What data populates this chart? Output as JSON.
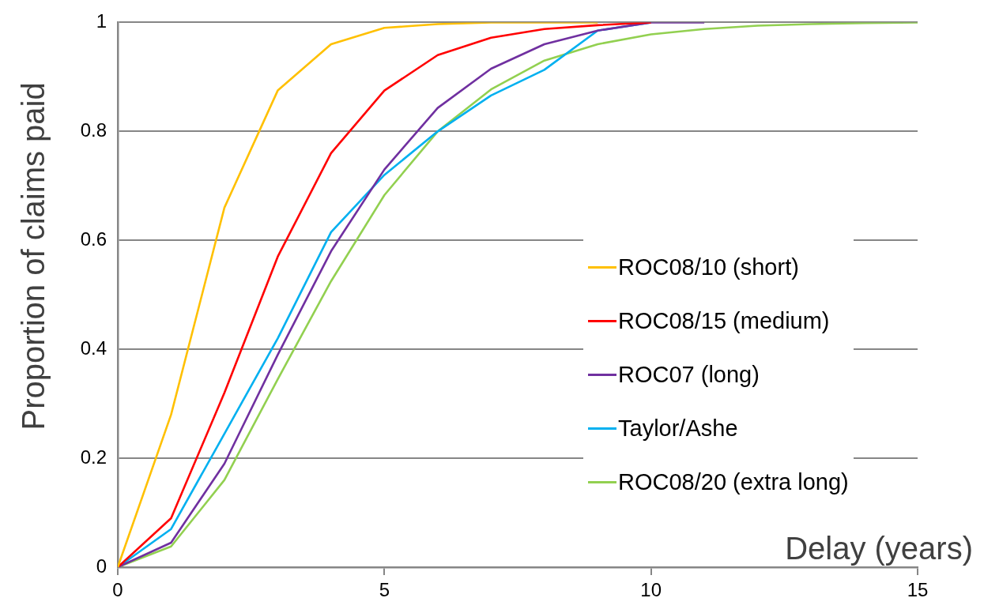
{
  "chart_data": {
    "type": "line",
    "xlabel": "Delay (years)",
    "ylabel": "Proportion of claims paid",
    "x": [
      0,
      1,
      2,
      3,
      4,
      5,
      6,
      7,
      8,
      9,
      10,
      11,
      12,
      13,
      14,
      15
    ],
    "xlim": [
      0,
      15
    ],
    "xticks": [
      0,
      5,
      10,
      15
    ],
    "ylim": [
      0,
      1
    ],
    "yticks": [
      0,
      0.2,
      0.4,
      0.6,
      0.8,
      1
    ],
    "grid": "y",
    "legend": "right",
    "marker": "none",
    "series": [
      {
        "name": "ROC08/10 (short)",
        "color": "#ffc000",
        "values": [
          0,
          0.28,
          0.66,
          0.875,
          0.96,
          0.99,
          0.997,
          1,
          1,
          1,
          null,
          null,
          null,
          null,
          null,
          null
        ]
      },
      {
        "name": "ROC08/15 (medium)",
        "color": "#ff0000",
        "values": [
          0,
          0.09,
          0.32,
          0.57,
          0.76,
          0.875,
          0.94,
          0.972,
          0.988,
          0.995,
          1,
          null,
          null,
          null,
          null,
          null
        ]
      },
      {
        "name": "ROC07 (long)",
        "color": "#7030a0",
        "values": [
          0,
          0.045,
          0.19,
          0.39,
          0.58,
          0.73,
          0.843,
          0.915,
          0.96,
          0.985,
          1,
          1,
          null,
          null,
          null,
          null
        ]
      },
      {
        "name": "Taylor/Ashe",
        "color": "#00b0f0",
        "values": [
          0,
          0.07,
          0.245,
          0.42,
          0.615,
          0.72,
          0.8,
          0.866,
          0.913,
          0.985,
          1,
          null,
          null,
          null,
          null,
          null
        ]
      },
      {
        "name": "ROC08/20 (extra long)",
        "color": "#92d050",
        "values": [
          0,
          0.038,
          0.16,
          0.345,
          0.525,
          0.683,
          0.8,
          0.877,
          0.93,
          0.96,
          0.978,
          0.988,
          0.994,
          0.997,
          0.999,
          1
        ]
      }
    ]
  }
}
